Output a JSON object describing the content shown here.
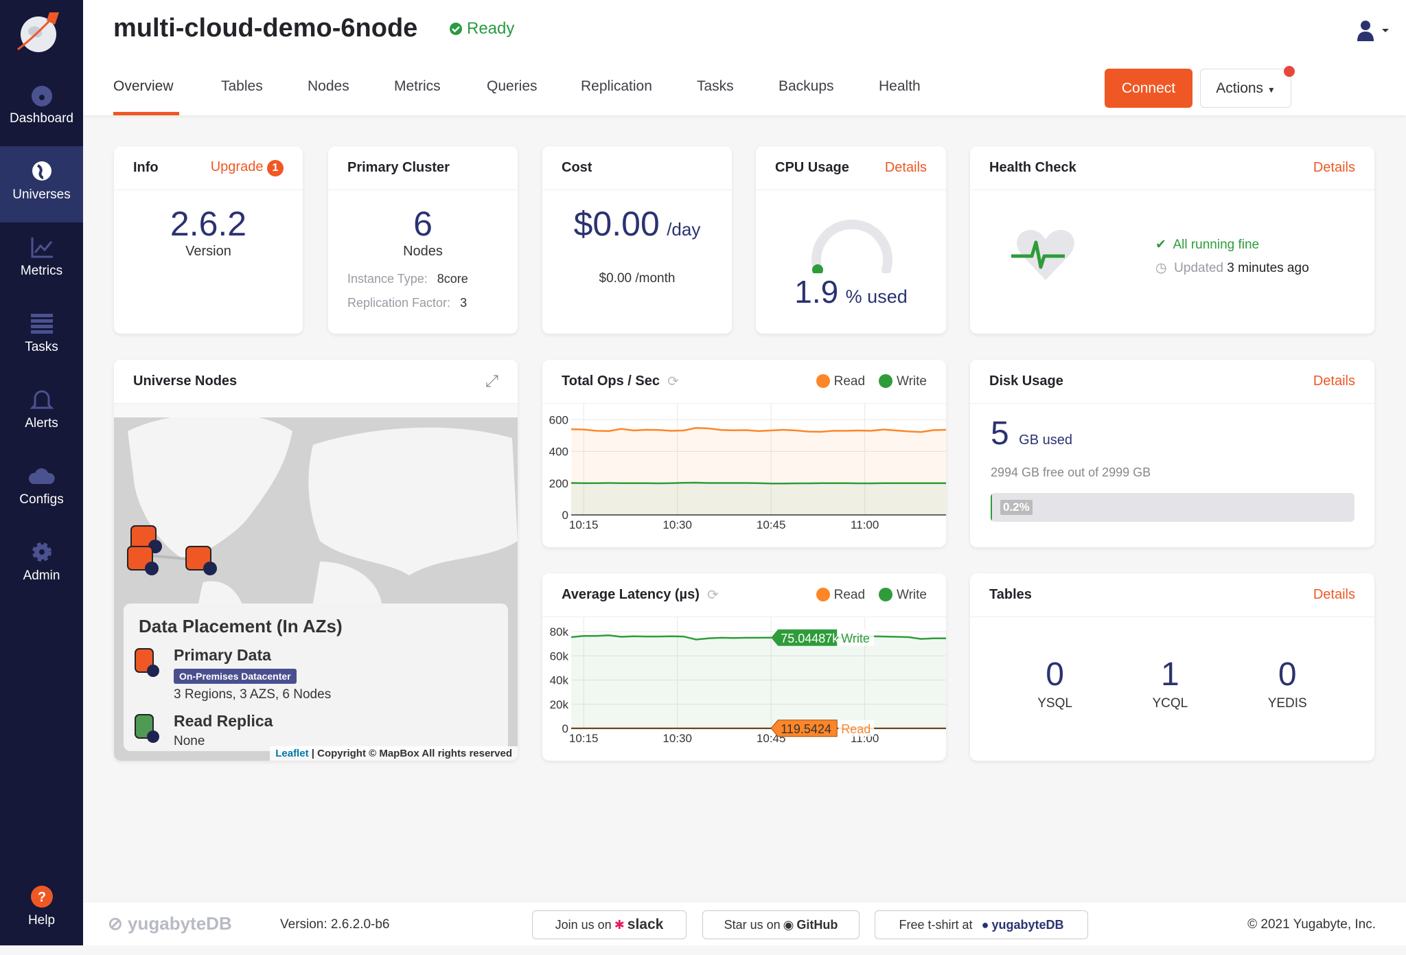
{
  "sidebar": {
    "items": [
      {
        "label": "Dashboard",
        "icon": "dashboard-icon"
      },
      {
        "label": "Universes",
        "icon": "globe-icon",
        "active": true
      },
      {
        "label": "Metrics",
        "icon": "chart-icon"
      },
      {
        "label": "Tasks",
        "icon": "list-icon"
      },
      {
        "label": "Alerts",
        "icon": "bell-icon"
      },
      {
        "label": "Configs",
        "icon": "cloud-upload-icon"
      },
      {
        "label": "Admin",
        "icon": "gear-icon"
      }
    ],
    "help": "Help"
  },
  "header": {
    "title": "multi-cloud-demo-6node",
    "status": "Ready",
    "tabs": [
      "Overview",
      "Tables",
      "Nodes",
      "Metrics",
      "Queries",
      "Replication",
      "Tasks",
      "Backups",
      "Health"
    ],
    "connect": "Connect",
    "actions": "Actions"
  },
  "info": {
    "title": "Info",
    "upgrade": "Upgrade",
    "upgrade_count": "1",
    "version": "2.6.2",
    "version_label": "Version"
  },
  "primary": {
    "title": "Primary Cluster",
    "nodes": "6",
    "nodes_label": "Nodes",
    "instance_label": "Instance Type:",
    "instance": "8core",
    "rf_label": "Replication Factor:",
    "rf": "3"
  },
  "cost": {
    "title": "Cost",
    "day": "$0.00",
    "day_unit": "/day",
    "month": "$0.00 /month"
  },
  "cpu": {
    "title": "CPU Usage",
    "details": "Details",
    "value": "1.9",
    "unit": "% used",
    "percent": 1.9
  },
  "health": {
    "title": "Health Check",
    "details": "Details",
    "status": "All running fine",
    "updated_label": "Updated",
    "updated": "3 minutes ago"
  },
  "map": {
    "title": "Universe Nodes",
    "placement_title": "Data Placement (In AZs)",
    "primary_label": "Primary Data",
    "badge": "On-Premises Datacenter",
    "primary_summary": "3 Regions, 3 AZS, 6 Nodes",
    "replica_label": "Read Replica",
    "replica_value": "None",
    "attr_leaflet": "Leaflet",
    "attr_copy": "| Copyright © MapBox All rights reserved"
  },
  "disk": {
    "title": "Disk Usage",
    "details": "Details",
    "used": "5",
    "used_unit": "GB used",
    "free_text": "2994 GB free out of 2999 GB",
    "percent_label": "0.2%",
    "percent": 0.2
  },
  "tables": {
    "title": "Tables",
    "details": "Details",
    "items": [
      {
        "count": "0",
        "label": "YSQL"
      },
      {
        "count": "1",
        "label": "YCQL"
      },
      {
        "count": "0",
        "label": "YEDIS"
      }
    ]
  },
  "colors": {
    "brand": "#ef5824",
    "read": "#fd8628",
    "write": "#2e9c3a",
    "navy": "#2b3270"
  },
  "chart_data": [
    {
      "type": "area",
      "title": "Total Ops / Sec",
      "xlim": [
        "10:13",
        "11:13"
      ],
      "xticks": [
        "10:15",
        "10:30",
        "10:45",
        "11:00"
      ],
      "ylim": [
        0,
        640
      ],
      "yticks": [
        0,
        200,
        400,
        600
      ],
      "grid": true,
      "legend": "top-right",
      "x": [
        "10:13",
        "10:15",
        "10:17",
        "10:19",
        "10:21",
        "10:23",
        "10:25",
        "10:27",
        "10:29",
        "10:31",
        "10:33",
        "10:35",
        "10:37",
        "10:39",
        "10:41",
        "10:43",
        "10:45",
        "10:47",
        "10:49",
        "10:51",
        "10:53",
        "10:55",
        "10:57",
        "10:59",
        "11:01",
        "11:03",
        "11:05",
        "11:07",
        "11:09",
        "11:11",
        "11:13"
      ],
      "series": [
        {
          "name": "Read",
          "values": [
            540,
            538,
            530,
            528,
            542,
            532,
            536,
            535,
            530,
            532,
            548,
            545,
            535,
            533,
            534,
            528,
            532,
            536,
            532,
            525,
            524,
            530,
            530,
            532,
            530,
            538,
            532,
            526,
            522,
            534,
            536
          ]
        },
        {
          "name": "Write",
          "values": [
            201,
            200,
            200,
            201,
            200,
            200,
            200,
            199,
            200,
            202,
            203,
            201,
            201,
            201,
            201,
            200,
            198,
            198,
            199,
            199,
            200,
            200,
            200,
            199,
            199,
            200,
            200,
            200,
            200,
            200,
            200
          ]
        }
      ]
    },
    {
      "type": "area",
      "title": "Average Latency (µs)",
      "xlim": [
        "10:13",
        "11:13"
      ],
      "xticks": [
        "10:15",
        "10:30",
        "10:45",
        "11:00"
      ],
      "ylim": [
        0,
        84000
      ],
      "yticks": [
        "0",
        "20k",
        "40k",
        "60k",
        "80k"
      ],
      "ytick_values": [
        0,
        20000,
        40000,
        60000,
        80000
      ],
      "grid": true,
      "legend": "top-right",
      "x": [
        "10:13",
        "10:15",
        "10:17",
        "10:19",
        "10:21",
        "10:23",
        "10:25",
        "10:27",
        "10:29",
        "10:31",
        "10:33",
        "10:35",
        "10:37",
        "10:39",
        "10:41",
        "10:43",
        "10:45",
        "10:47",
        "10:49",
        "10:51",
        "10:53",
        "10:55",
        "10:57",
        "10:59",
        "11:01",
        "11:03",
        "11:05",
        "11:07",
        "11:09",
        "11:11",
        "11:13"
      ],
      "series": [
        {
          "name": "Read",
          "values": [
            120,
            120,
            119,
            120,
            121,
            120,
            120,
            119,
            120,
            120,
            120,
            120,
            120,
            120,
            120,
            119,
            119.5424,
            120,
            120,
            120,
            120,
            120,
            120,
            120,
            120,
            120,
            120,
            120,
            120,
            120,
            120
          ]
        },
        {
          "name": "Write",
          "values": [
            75500,
            76500,
            76500,
            77000,
            75800,
            76200,
            76000,
            76000,
            76200,
            76000,
            73500,
            74500,
            75000,
            74800,
            75000,
            75000,
            75044.87,
            75200,
            75500,
            75800,
            75500,
            75300,
            75200,
            76000,
            76200,
            76000,
            75800,
            75500,
            74000,
            74500,
            74500
          ]
        }
      ],
      "tooltip": {
        "x": "10:45",
        "write_label": "75.04487k",
        "write_name": "Write",
        "read_label": "119.5424",
        "read_name": "Read"
      }
    }
  ],
  "footer": {
    "brand": "yugabyteDB",
    "version": "Version: 2.6.2.0-b6",
    "slack_pre": "Join us on",
    "slack": "slack",
    "github_pre": "Star us on",
    "github": "GitHub",
    "tshirt_pre": "Free t-shirt at",
    "tshirt_brand": "yugabyteDB",
    "copyright": "© 2021 Yugabyte, Inc."
  }
}
